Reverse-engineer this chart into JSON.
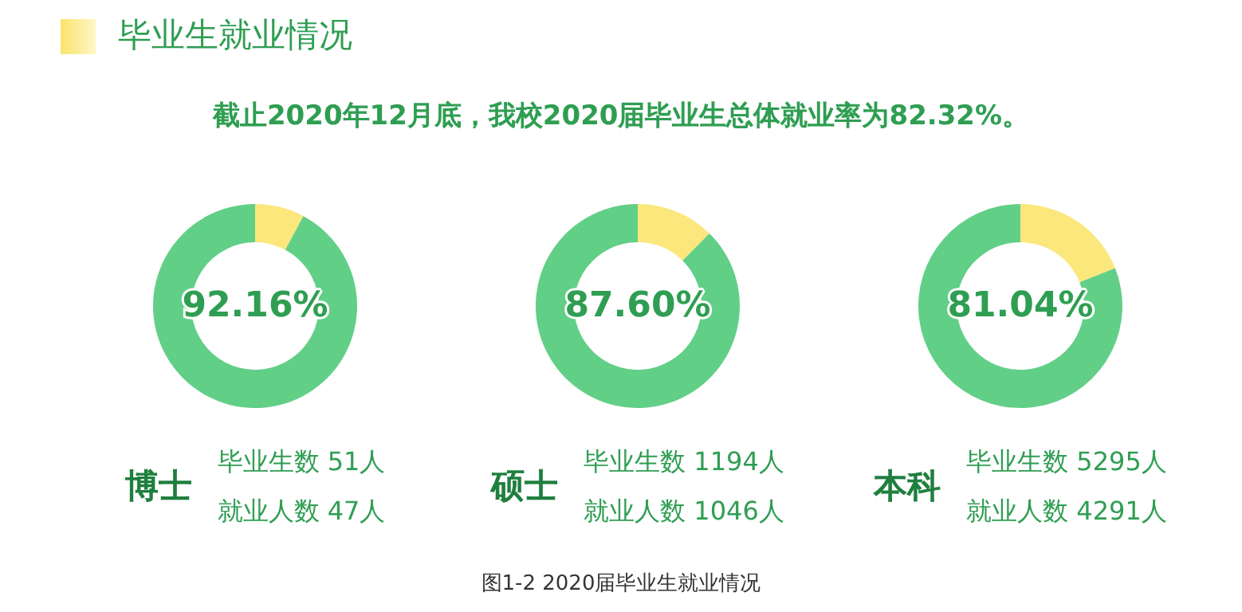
{
  "chart_data": [
    {
      "type": "other",
      "title": "毕业生就业情况",
      "subtitle": "截止2020年12月底，我校2020届毕业生总体就业率为82.32%。",
      "annotations": [
        "图1-2 2020届毕业生就业情况"
      ]
    },
    {
      "type": "donut",
      "title": "博士",
      "categories": [
        null,
        null
      ],
      "values": [
        7.84,
        92.16
      ],
      "colors": [
        "#fbe77c",
        "#62cf87"
      ],
      "value_labels": [
        null,
        "92.16%"
      ],
      "annotations": [
        "毕业生数 51人",
        "就业人数 47人"
      ]
    },
    {
      "type": "donut",
      "title": "硕士",
      "categories": [
        null,
        null
      ],
      "values": [
        12.4,
        87.6
      ],
      "colors": [
        "#fbe77c",
        "#62cf87"
      ],
      "value_labels": [
        null,
        "87.60%"
      ],
      "annotations": [
        "毕业生数 1194人",
        "就业人数 1046人"
      ]
    },
    {
      "type": "donut",
      "title": "本科",
      "categories": [
        null,
        null
      ],
      "values": [
        18.96,
        81.04
      ],
      "colors": [
        "#fbe77c",
        "#62cf87"
      ],
      "value_labels": [
        null,
        "81.04%"
      ],
      "annotations": [
        "毕业生数 5295人",
        "就业人数 4291人"
      ]
    }
  ]
}
